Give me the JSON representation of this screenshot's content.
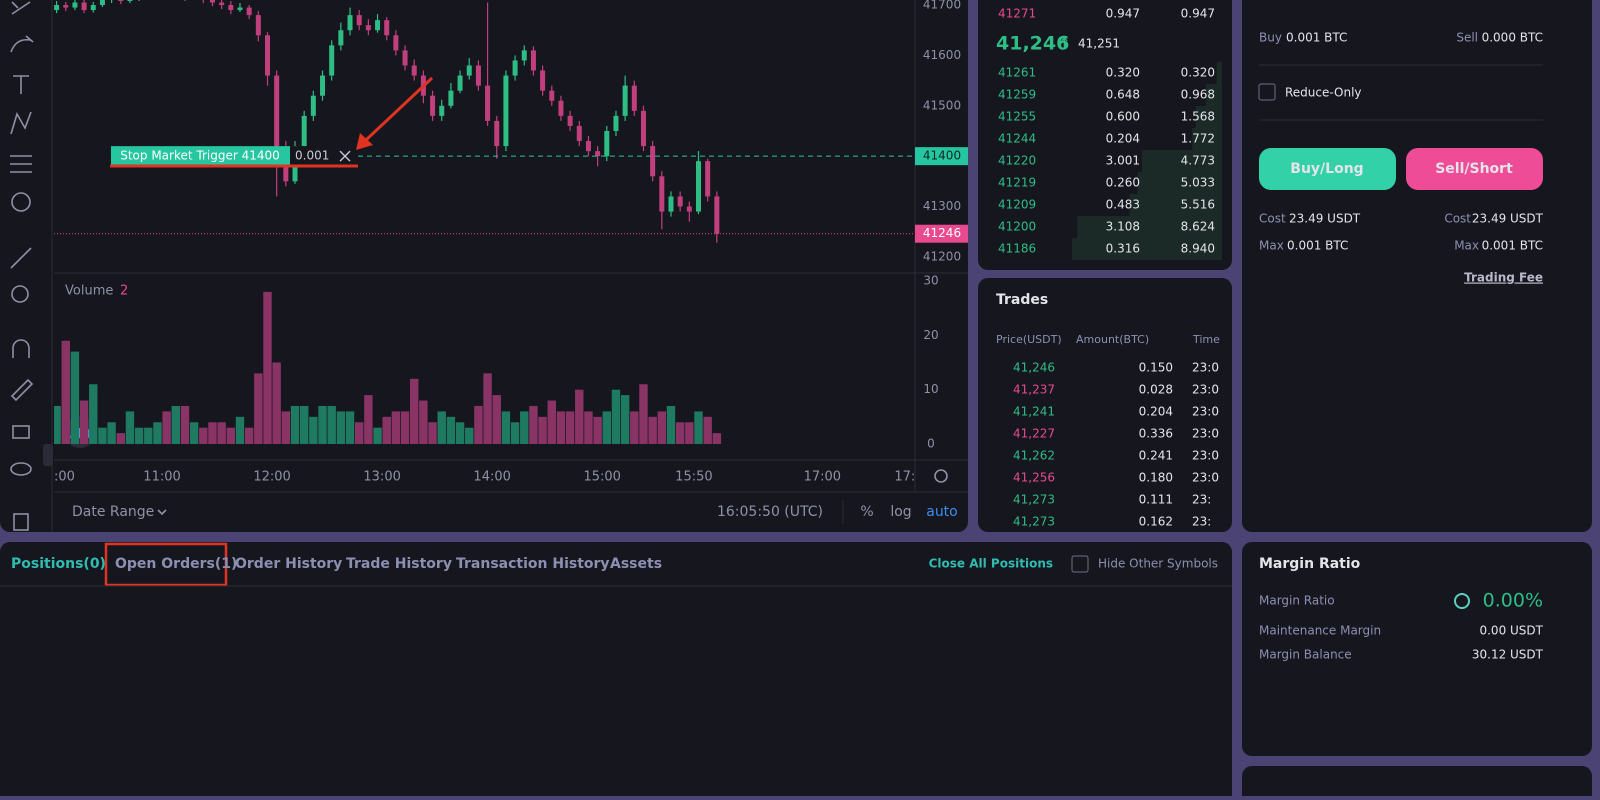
{
  "price_chart": {
    "type": "candlestick",
    "ylim": [
      41170,
      41710
    ],
    "yticks": [
      41200,
      41300,
      41400,
      41500,
      41600,
      41700
    ],
    "xlim": [
      0,
      94
    ],
    "xticks": [
      {
        "value": 0,
        "label": ":00"
      },
      {
        "value": 12,
        "label": "11:00"
      },
      {
        "value": 24,
        "label": "12:00"
      },
      {
        "value": 36,
        "label": "13:00"
      },
      {
        "value": 48,
        "label": "14:00"
      },
      {
        "value": 60,
        "label": "15:00"
      },
      {
        "value": 70,
        "label": "15:50"
      },
      {
        "value": 84,
        "label": "17:00"
      },
      {
        "value": 93,
        "label": "17:"
      }
    ],
    "up_color": "#2ebd85",
    "down_color": "#c23f7e",
    "ohlc": [
      [
        41690,
        41708,
        41684,
        41700
      ],
      [
        41700,
        41706,
        41688,
        41695
      ],
      [
        41695,
        41712,
        41690,
        41705
      ],
      [
        41705,
        41710,
        41684,
        41690
      ],
      [
        41690,
        41706,
        41685,
        41700
      ],
      [
        41700,
        41718,
        41696,
        41710
      ],
      [
        41710,
        41722,
        41704,
        41715
      ],
      [
        41715,
        41720,
        41702,
        41708
      ],
      [
        41708,
        41718,
        41704,
        41712
      ],
      [
        41712,
        41726,
        41708,
        41720
      ],
      [
        41720,
        41728,
        41712,
        41720
      ],
      [
        41720,
        41732,
        41716,
        41725
      ],
      [
        41725,
        41730,
        41712,
        41718
      ],
      [
        41718,
        41728,
        41714,
        41722
      ],
      [
        41722,
        41726,
        41708,
        41715
      ],
      [
        41715,
        41726,
        41710,
        41720
      ],
      [
        41720,
        41724,
        41704,
        41710
      ],
      [
        41710,
        41716,
        41698,
        41705
      ],
      [
        41705,
        41712,
        41692,
        41700
      ],
      [
        41700,
        41708,
        41682,
        41690
      ],
      [
        41690,
        41704,
        41686,
        41695
      ],
      [
        41695,
        41700,
        41672,
        41680
      ],
      [
        41680,
        41688,
        41628,
        41640
      ],
      [
        41640,
        41646,
        41540,
        41560
      ],
      [
        41560,
        41570,
        41320,
        41400
      ],
      [
        41400,
        41430,
        41340,
        41350
      ],
      [
        41350,
        41430,
        41345,
        41420
      ],
      [
        41420,
        41490,
        41410,
        41480
      ],
      [
        41480,
        41530,
        41470,
        41520
      ],
      [
        41520,
        41570,
        41510,
        41560
      ],
      [
        41560,
        41630,
        41550,
        41620
      ],
      [
        41620,
        41665,
        41610,
        41650
      ],
      [
        41650,
        41695,
        41640,
        41680
      ],
      [
        41680,
        41690,
        41650,
        41660
      ],
      [
        41660,
        41672,
        41640,
        41650
      ],
      [
        41650,
        41682,
        41645,
        41670
      ],
      [
        41670,
        41676,
        41630,
        41640
      ],
      [
        41640,
        41650,
        41600,
        41610
      ],
      [
        41610,
        41620,
        41570,
        41580
      ],
      [
        41580,
        41592,
        41550,
        41560
      ],
      [
        41560,
        41570,
        41505,
        41520
      ],
      [
        41520,
        41530,
        41470,
        41480
      ],
      [
        41480,
        41512,
        41470,
        41500
      ],
      [
        41500,
        41545,
        41495,
        41530
      ],
      [
        41530,
        41570,
        41525,
        41560
      ],
      [
        41560,
        41595,
        41552,
        41580
      ],
      [
        41580,
        41590,
        41530,
        41540
      ],
      [
        41540,
        41705,
        41460,
        41470
      ],
      [
        41470,
        41480,
        41395,
        41420
      ],
      [
        41420,
        41570,
        41410,
        41560
      ],
      [
        41560,
        41600,
        41550,
        41590
      ],
      [
        41590,
        41620,
        41580,
        41610
      ],
      [
        41610,
        41618,
        41560,
        41570
      ],
      [
        41570,
        41580,
        41520,
        41530
      ],
      [
        41530,
        41540,
        41500,
        41510
      ],
      [
        41510,
        41520,
        41470,
        41480
      ],
      [
        41480,
        41490,
        41450,
        41460
      ],
      [
        41460,
        41470,
        41420,
        41430
      ],
      [
        41430,
        41440,
        41400,
        41410
      ],
      [
        41410,
        41420,
        41380,
        41400
      ],
      [
        41400,
        41460,
        41390,
        41450
      ],
      [
        41450,
        41490,
        41440,
        41480
      ],
      [
        41480,
        41560,
        41470,
        41540
      ],
      [
        41540,
        41550,
        41480,
        41490
      ],
      [
        41490,
        41500,
        41410,
        41420
      ],
      [
        41420,
        41430,
        41350,
        41360
      ],
      [
        41360,
        41370,
        41255,
        41290
      ],
      [
        41290,
        41330,
        41280,
        41320
      ],
      [
        41320,
        41330,
        41290,
        41300
      ],
      [
        41300,
        41310,
        41270,
        41290
      ],
      [
        41290,
        41410,
        41285,
        41390
      ],
      [
        41390,
        41395,
        41310,
        41320
      ],
      [
        41320,
        41330,
        41228,
        41246
      ]
    ],
    "order_line": {
      "label": "Stop Market Trigger 41400",
      "price": 41400,
      "quantity": "0.001",
      "color": "#26c6a0"
    },
    "last_price": 41246,
    "last_price_color": "#e8498f",
    "volume": {
      "label": "Volume",
      "value": 2,
      "ylim": [
        0,
        30
      ],
      "yticks": [
        0,
        10,
        20,
        30
      ],
      "up_color": "#1f7a62",
      "down_color": "#8a3466",
      "values": [
        7,
        19,
        17,
        8,
        11,
        3,
        4,
        2,
        6,
        3,
        3,
        4,
        6,
        7,
        7,
        4,
        3,
        4,
        4,
        3,
        5,
        3,
        13,
        28,
        15,
        6,
        7,
        7,
        5,
        7,
        7,
        6,
        6,
        4,
        9,
        3,
        5,
        6,
        6,
        12,
        8,
        4,
        6,
        5,
        4,
        3,
        7,
        13,
        9,
        6,
        4,
        6,
        7,
        5,
        8,
        6,
        6,
        10,
        6,
        5,
        6,
        10,
        9,
        6,
        11,
        5,
        6,
        7,
        4,
        4,
        6,
        5,
        2
      ]
    },
    "toolbar": {
      "date_range": "Date Range",
      "clock": "16:05:50 (UTC)",
      "percent": "%",
      "log": "log",
      "auto": "auto"
    }
  },
  "order_book": {
    "asks": [
      [
        "41271",
        "0.947",
        "0.947"
      ]
    ],
    "last": "41,246",
    "arrow": "↑",
    "mark": "41,251",
    "bids": [
      [
        "41261",
        "0.320",
        "0.320"
      ],
      [
        "41259",
        "0.648",
        "0.968"
      ],
      [
        "41255",
        "0.600",
        "1.568"
      ],
      [
        "41244",
        "0.204",
        "1.772"
      ],
      [
        "41220",
        "3.001",
        "4.773"
      ],
      [
        "41219",
        "0.260",
        "5.033"
      ],
      [
        "41209",
        "0.483",
        "5.516"
      ],
      [
        "41200",
        "3.108",
        "8.624"
      ],
      [
        "41186",
        "0.316",
        "8.940"
      ]
    ]
  },
  "trades": {
    "title": "Trades",
    "columns": [
      "Price(USDT)",
      "Amount(BTC)",
      "Time"
    ],
    "rows": [
      {
        "price": "41,246",
        "amount": "0.150",
        "time": "23:0",
        "color": "#2ebd85"
      },
      {
        "price": "41,237",
        "amount": "0.028",
        "time": "23:0",
        "color": "#e8498f"
      },
      {
        "price": "41,241",
        "amount": "0.204",
        "time": "23:0",
        "color": "#2ebd85"
      },
      {
        "price": "41,227",
        "amount": "0.336",
        "time": "23:0",
        "color": "#e8498f"
      },
      {
        "price": "41,262",
        "amount": "0.241",
        "time": "23:0",
        "color": "#2ebd85"
      },
      {
        "price": "41,256",
        "amount": "0.180",
        "time": "23:0",
        "color": "#e8498f"
      },
      {
        "price": "41,273",
        "amount": "0.111",
        "time": "23:",
        "color": "#2ebd85"
      },
      {
        "price": "41,273",
        "amount": "0.162",
        "time": "23:",
        "color": "#2ebd85"
      }
    ]
  },
  "order_form": {
    "buy_label": "Buy",
    "buy_value": "0.001 BTC",
    "sell_label": "Sell",
    "sell_value": "0.000 BTC",
    "reduce_only": "Reduce-Only",
    "buy_button": "Buy/Long",
    "sell_button": "Sell/Short",
    "cost_label": "Cost",
    "buy_cost": "23.49 USDT",
    "sell_cost": "23.49 USDT",
    "max_label": "Max",
    "buy_max": "0.001 BTC",
    "sell_max": "0.001 BTC",
    "trading_fee": "Trading Fee"
  },
  "tabs": {
    "items": [
      "Positions(0)",
      "Open Orders(1)",
      "Order History",
      "Trade History",
      "Transaction History",
      "Assets"
    ],
    "close_all": "Close All Positions",
    "hide_other": "Hide Other Symbols"
  },
  "margin": {
    "title": "Margin Ratio",
    "ratio_label": "Margin Ratio",
    "ratio_value": "0.00%",
    "maintenance_label": "Maintenance Margin",
    "maintenance_value": "0.00 USDT",
    "balance_label": "Margin Balance",
    "balance_value": "30.12 USDT"
  }
}
